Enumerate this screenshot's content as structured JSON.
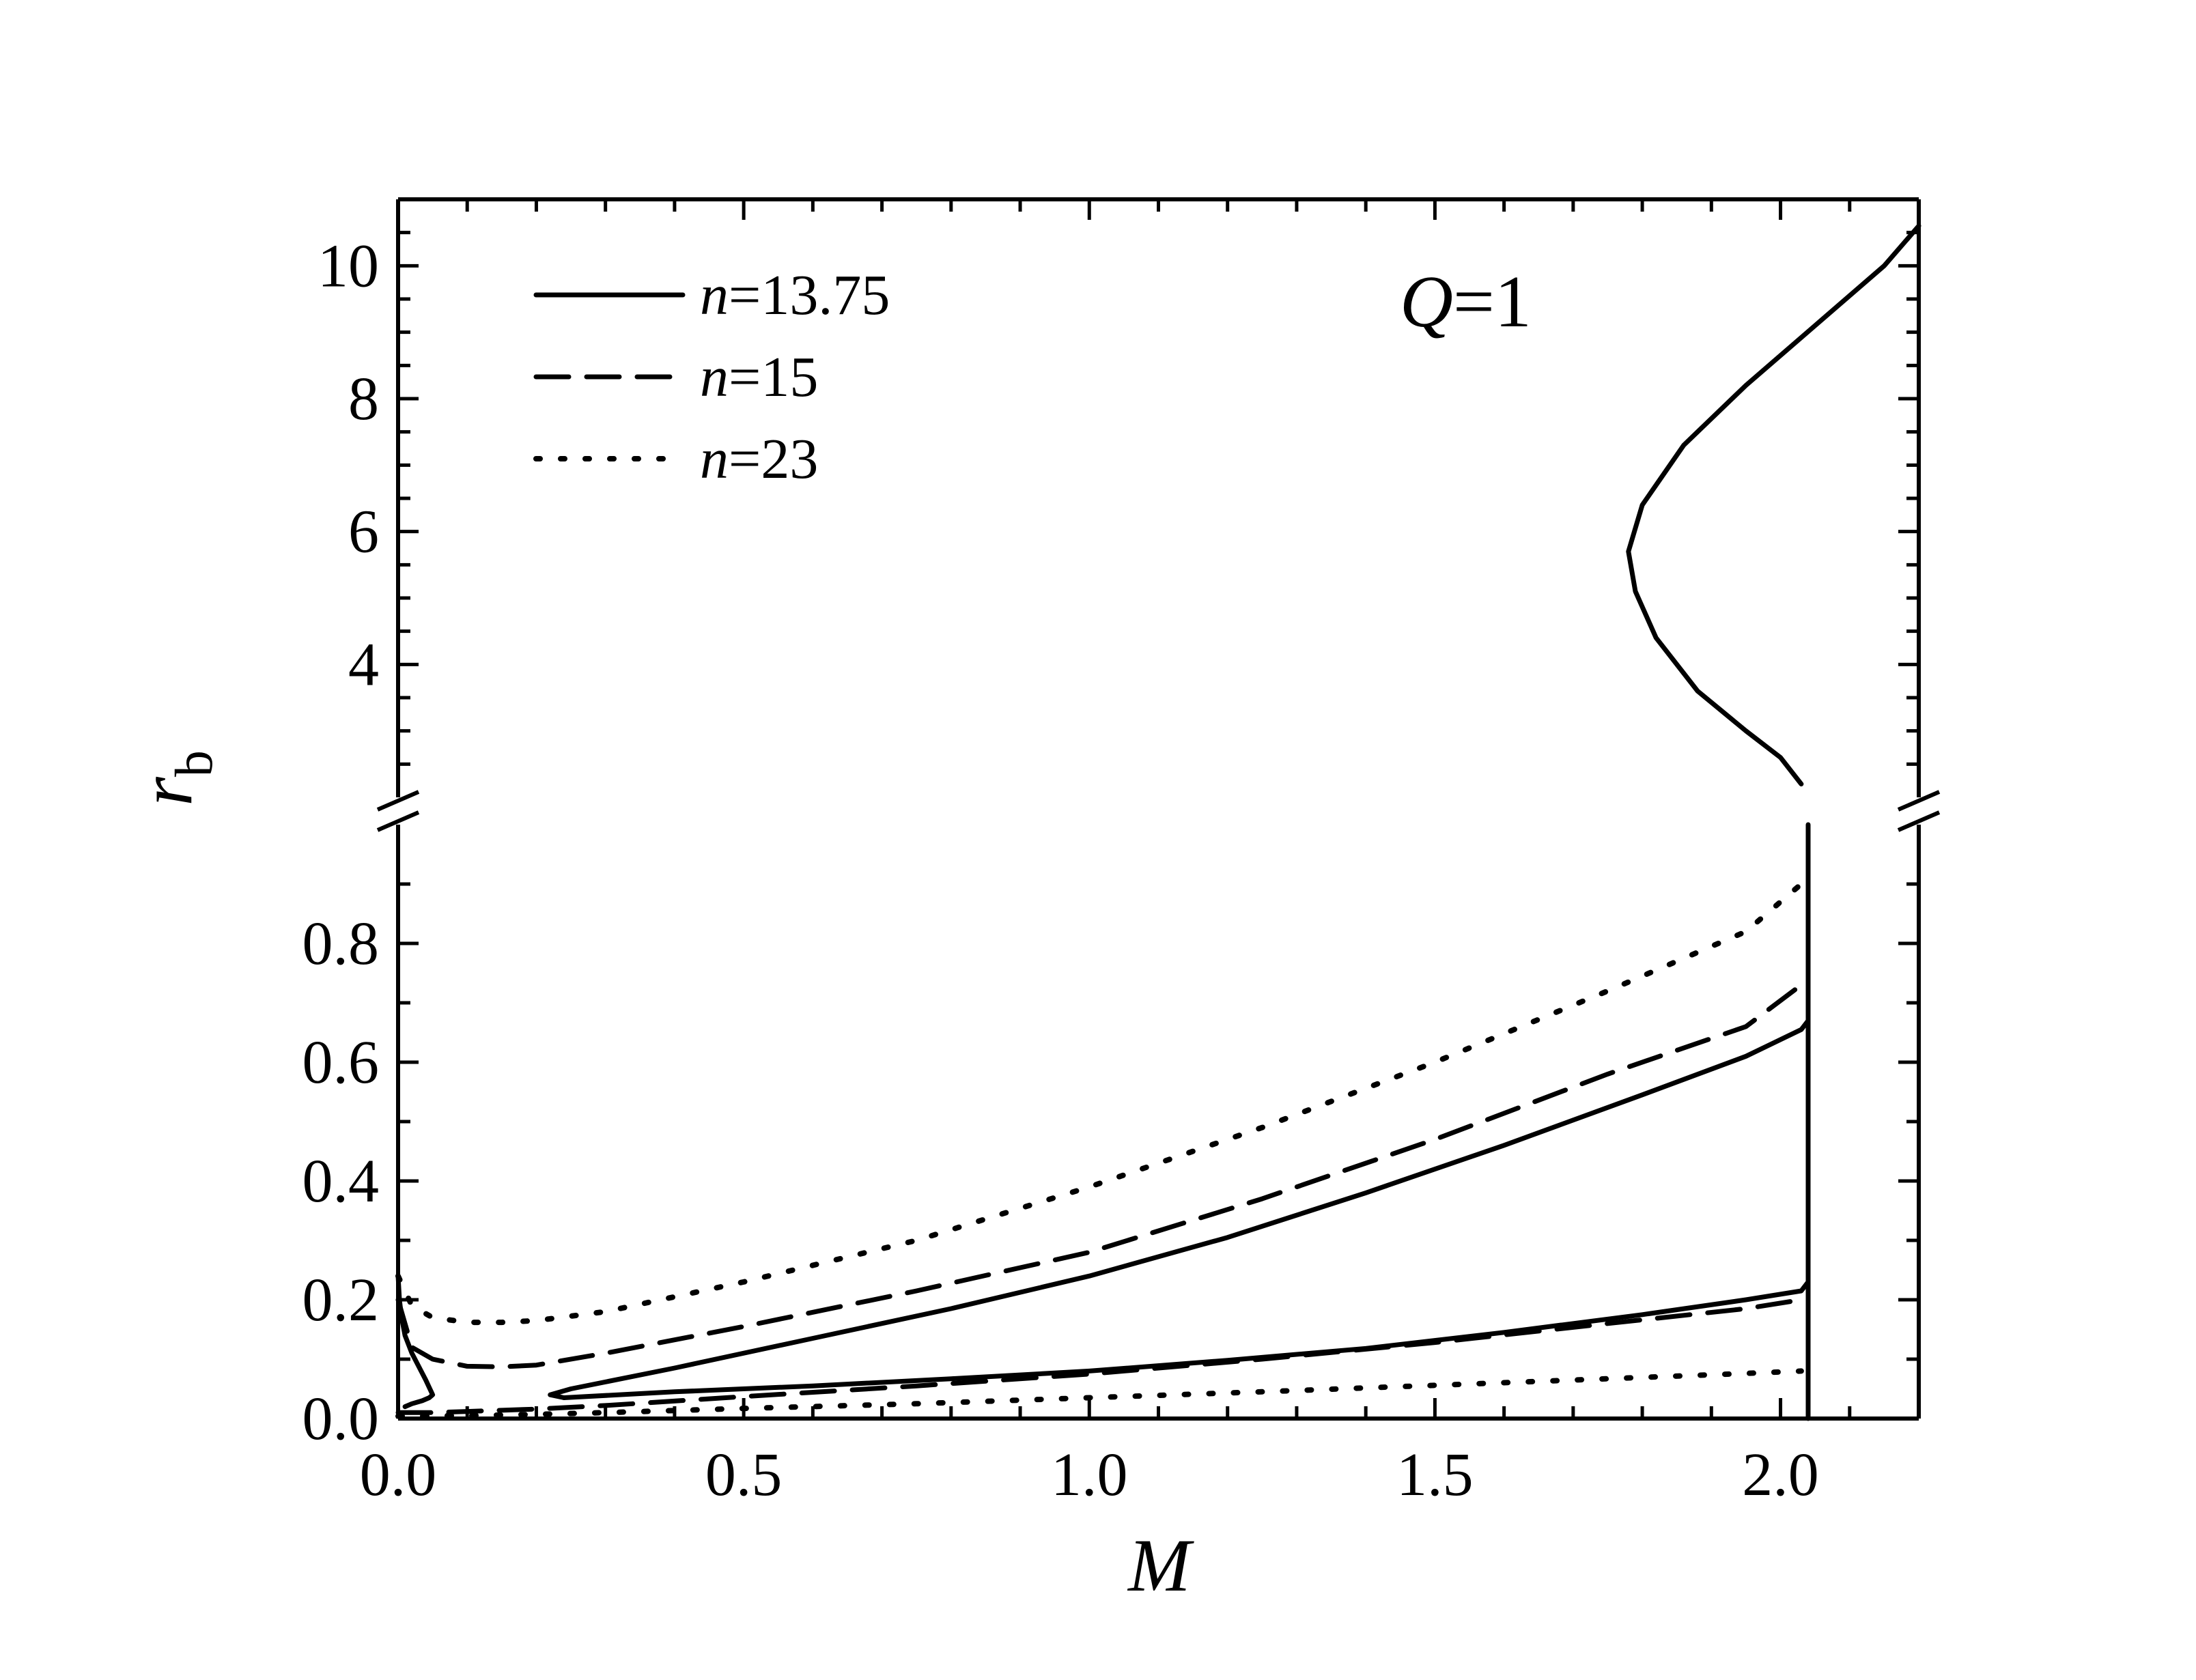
{
  "chart_data": {
    "type": "line",
    "xlabel": "M",
    "ylabel": {
      "symbol": "r",
      "subscript": "b"
    },
    "xlim": [
      0.0,
      2.2
    ],
    "ylim_lower": [
      0.0,
      1.0
    ],
    "ylim_upper": [
      2.0,
      11.0
    ],
    "broken_y_axis": true,
    "x_ticks": [
      "0.0",
      "0.5",
      "1.0",
      "1.5",
      "2.0"
    ],
    "y_ticks_lower": [
      "0.0",
      "0.2",
      "0.4",
      "0.6",
      "0.8"
    ],
    "y_ticks_upper": [
      "4",
      "6",
      "8",
      "10"
    ],
    "annotation": {
      "symbol": "Q",
      "value": "=1"
    },
    "legend_position": "top-left",
    "series": [
      {
        "name": "n=13.75",
        "style": "solid",
        "branches": [
          {
            "x": [
              0.01,
              0.02,
              0.035,
              0.045,
              0.05,
              0.04,
              0.02,
              0.01,
              0.005,
              0.002,
              0.0
            ],
            "y": [
              0.02,
              0.025,
              0.03,
              0.035,
              0.04,
              0.065,
              0.11,
              0.14,
              0.17,
              0.2,
              0.24
            ]
          },
          {
            "x": [
              0.24,
              0.22,
              0.25,
              0.4,
              0.6,
              0.8,
              1.0,
              1.2,
              1.4,
              1.6,
              1.8,
              1.95,
              2.03,
              2.04
            ],
            "y": [
              0.035,
              0.04,
              0.05,
              0.085,
              0.135,
              0.185,
              0.24,
              0.305,
              0.38,
              0.46,
              0.545,
              0.61,
              0.655,
              0.67
            ]
          },
          {
            "x": [
              0.24,
              0.4,
              0.6,
              0.8,
              1.0,
              1.2,
              1.4,
              1.6,
              1.8,
              1.95,
              2.03,
              2.04
            ],
            "y": [
              0.035,
              0.045,
              0.055,
              0.067,
              0.08,
              0.098,
              0.118,
              0.145,
              0.175,
              0.2,
              0.215,
              0.23
            ]
          },
          {
            "x": [
              2.04,
              2.04,
              2.04
            ],
            "y": [
              0.0,
              0.67,
              1.0
            ]
          },
          {
            "x": [
              2.03,
              2.0,
              1.95,
              1.88,
              1.82,
              1.79,
              1.78,
              1.8,
              1.86,
              1.95,
              2.05,
              2.15,
              2.2
            ],
            "y": [
              2.2,
              2.6,
              3.0,
              3.6,
              4.4,
              5.1,
              5.7,
              6.4,
              7.3,
              8.2,
              9.1,
              10.0,
              10.6
            ]
          }
        ]
      },
      {
        "name": "n=15",
        "style": "dashed",
        "branches": [
          {
            "x": [
              0.0,
              0.02,
              0.05,
              0.1,
              0.15,
              0.2,
              0.3,
              0.5,
              0.75,
              1.0,
              1.25,
              1.5,
              1.75,
              1.95,
              2.03
            ],
            "y": [
              0.2,
              0.12,
              0.1,
              0.088,
              0.087,
              0.09,
              0.11,
              0.155,
              0.215,
              0.28,
              0.37,
              0.47,
              0.58,
              0.66,
              0.73
            ]
          },
          {
            "x": [
              0.0,
              0.05,
              0.1,
              0.2,
              0.3,
              0.5,
              0.75,
              1.0,
              1.25,
              1.5,
              1.75,
              1.95,
              2.03
            ],
            "y": [
              0.01,
              0.01,
              0.012,
              0.016,
              0.022,
              0.037,
              0.055,
              0.075,
              0.1,
              0.128,
              0.16,
              0.185,
              0.2
            ]
          }
        ]
      },
      {
        "name": "n=23",
        "style": "dotted",
        "branches": [
          {
            "x": [
              0.0,
              0.02,
              0.05,
              0.1,
              0.15,
              0.2,
              0.3,
              0.5,
              0.75,
              1.0,
              1.25,
              1.5,
              1.75,
              1.95,
              2.03
            ],
            "y": [
              0.24,
              0.19,
              0.17,
              0.162,
              0.162,
              0.165,
              0.18,
              0.23,
              0.3,
              0.39,
              0.49,
              0.6,
              0.72,
              0.82,
              0.9
            ]
          },
          {
            "x": [
              0.0,
              0.1,
              0.2,
              0.3,
              0.5,
              0.75,
              1.0,
              1.25,
              1.5,
              1.75,
              1.95,
              2.03
            ],
            "y": [
              0.004,
              0.005,
              0.007,
              0.01,
              0.017,
              0.025,
              0.035,
              0.045,
              0.056,
              0.067,
              0.076,
              0.08
            ]
          }
        ]
      }
    ]
  }
}
